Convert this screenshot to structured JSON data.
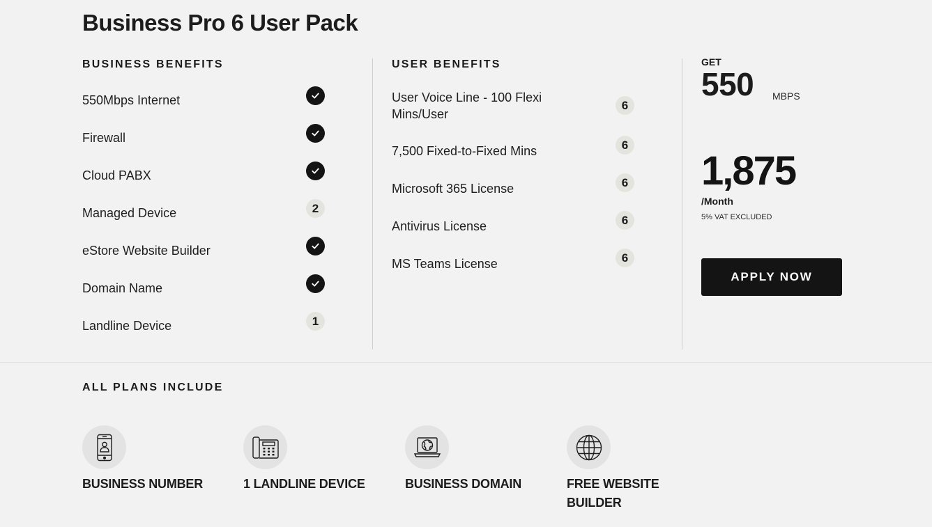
{
  "plan": {
    "title": "Business Pro 6 User Pack"
  },
  "business_benefits": {
    "heading": "BUSINESS BENEFITS",
    "items": [
      {
        "label": "550Mbps Internet",
        "marker": "check",
        "icon": "checkmark-icon"
      },
      {
        "label": "Firewall",
        "marker": "check",
        "icon": "checkmark-icon"
      },
      {
        "label": "Cloud PABX",
        "marker": "check",
        "icon": "checkmark-icon"
      },
      {
        "label": "Managed Device",
        "marker": "count",
        "count": "2"
      },
      {
        "label": "eStore Website Builder",
        "marker": "check",
        "icon": "checkmark-icon"
      },
      {
        "label": "Domain Name",
        "marker": "check",
        "icon": "checkmark-icon"
      },
      {
        "label": "Landline Device",
        "marker": "count",
        "count": "1"
      }
    ]
  },
  "user_benefits": {
    "heading": "USER BENEFITS",
    "items": [
      {
        "label": "User Voice Line - 100 Flexi Mins/User",
        "count": "6"
      },
      {
        "label": "7,500 Fixed-to-Fixed Mins",
        "count": "6"
      },
      {
        "label": "Microsoft 365 License",
        "count": "6"
      },
      {
        "label": "Antivirus License",
        "count": "6"
      },
      {
        "label": "MS Teams License",
        "count": "6"
      }
    ]
  },
  "pricing": {
    "get_label": "GET",
    "speed_value": "550",
    "speed_unit": "MBPS",
    "price": "1,875",
    "period": "/Month",
    "vat_note": "5% VAT EXCLUDED",
    "apply_label": "APPLY NOW"
  },
  "all_plans": {
    "heading": "ALL PLANS INCLUDE",
    "items": [
      {
        "label": "BUSINESS NUMBER",
        "icon": "mobile-phone-icon"
      },
      {
        "label": "1 LANDLINE DEVICE",
        "icon": "desk-phone-icon"
      },
      {
        "label": "BUSINESS DOMAIN",
        "icon": "laptop-globe-icon"
      },
      {
        "label": "FREE WEBSITE BUILDER",
        "icon": "globe-icon"
      }
    ]
  },
  "colors": {
    "background": "#f2f2f2",
    "check_marker": "#141414",
    "count_marker": "#e4e4de",
    "button": "#141414"
  }
}
